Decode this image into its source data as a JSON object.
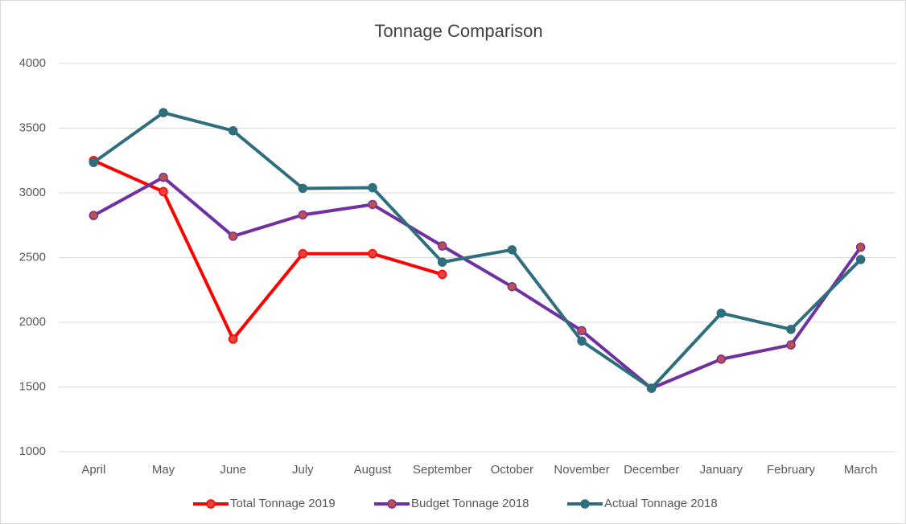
{
  "chart_data": {
    "type": "line",
    "title": "Tonnage Comparison",
    "categories": [
      "April",
      "May",
      "June",
      "July",
      "August",
      "September",
      "October",
      "November",
      "December",
      "January",
      "February",
      "March"
    ],
    "series": [
      {
        "name": "Total Tonnage 2019",
        "color": "#ff0000",
        "marker_color": "#e8433a",
        "values": [
          3250,
          3010,
          1870,
          2530,
          2530,
          2370,
          null,
          null,
          null,
          null,
          null,
          null
        ]
      },
      {
        "name": "Budget Tonnage 2018",
        "color": "#7030a0",
        "marker_color": "#c0504d",
        "values": [
          2825,
          3120,
          2665,
          2830,
          2910,
          2590,
          2275,
          1935,
          1490,
          1715,
          1825,
          2580
        ]
      },
      {
        "name": "Actual Tonnage 2018",
        "color": "#2f6e7c",
        "marker_color": "#2f6e7c",
        "values": [
          3235,
          3620,
          3480,
          3035,
          3040,
          2465,
          2560,
          1855,
          1490,
          2070,
          1945,
          2485
        ]
      }
    ],
    "ylim": [
      1000,
      4000
    ],
    "yticks": [
      1000,
      1500,
      2000,
      2500,
      3000,
      3500,
      4000
    ],
    "grid": true,
    "legend": "bottom"
  }
}
